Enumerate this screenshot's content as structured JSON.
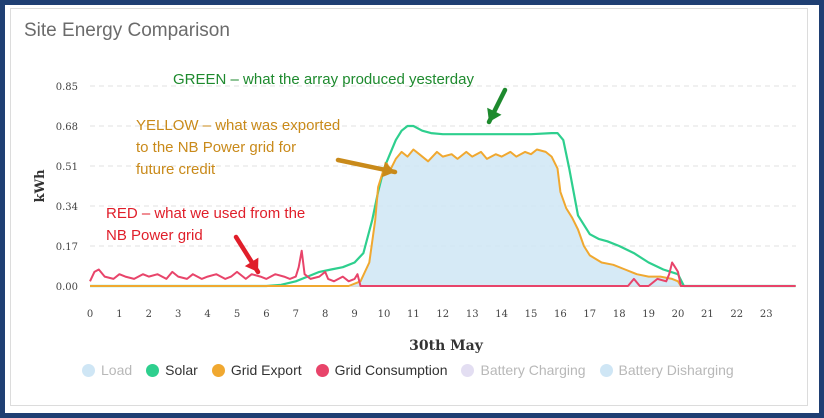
{
  "title": "Site Energy Comparison",
  "chart_data": {
    "type": "area",
    "xlabel": "30th May",
    "ylabel": "kWh",
    "xlim": [
      0,
      24
    ],
    "ylim": [
      0,
      0.85
    ],
    "x_ticks": [
      "0",
      "1",
      "2",
      "3",
      "4",
      "5",
      "6",
      "7",
      "8",
      "9",
      "10",
      "11",
      "12",
      "13",
      "14",
      "15",
      "16",
      "17",
      "18",
      "19",
      "20",
      "21",
      "22",
      "23"
    ],
    "y_ticks": [
      "0.00",
      "0.17",
      "0.34",
      "0.51",
      "0.68",
      "0.85"
    ],
    "grid": "horizontal dashed",
    "legend": [
      {
        "name": "Load",
        "color": "#cfe6f5",
        "active": false
      },
      {
        "name": "Solar",
        "color": "#2ecf8e",
        "active": true
      },
      {
        "name": "Grid Export",
        "color": "#f0a830",
        "active": true
      },
      {
        "name": "Grid Consumption",
        "color": "#e8446a",
        "active": true
      },
      {
        "name": "Battery Charging",
        "color": "#e3def2",
        "active": false
      },
      {
        "name": "Battery Disharging",
        "color": "#cfe6f5",
        "active": false
      }
    ],
    "series": [
      {
        "name": "Solar",
        "color": "#2ecf8e",
        "x": [
          0,
          6.0,
          6.5,
          7.0,
          7.4,
          7.8,
          8.2,
          8.6,
          9.0,
          9.3,
          9.6,
          9.8,
          10.0,
          10.2,
          10.4,
          10.6,
          10.8,
          11.0,
          11.3,
          11.6,
          12.0,
          13.0,
          14.0,
          15.0,
          15.7,
          15.9,
          16.1,
          16.3,
          16.6,
          17.0,
          17.3,
          17.6,
          18.0,
          18.5,
          19.0,
          19.5,
          20.0,
          20.2,
          24
        ],
        "y": [
          0,
          0,
          0.005,
          0.02,
          0.04,
          0.06,
          0.07,
          0.08,
          0.1,
          0.14,
          0.28,
          0.4,
          0.5,
          0.56,
          0.62,
          0.66,
          0.68,
          0.68,
          0.66,
          0.65,
          0.645,
          0.645,
          0.645,
          0.645,
          0.65,
          0.65,
          0.62,
          0.5,
          0.3,
          0.22,
          0.2,
          0.19,
          0.17,
          0.14,
          0.1,
          0.07,
          0.05,
          0,
          0
        ]
      },
      {
        "name": "Grid Export",
        "color": "#f0a830",
        "x": [
          0,
          8.8,
          9.2,
          9.5,
          9.7,
          9.8,
          10.0,
          10.1,
          10.2,
          10.4,
          10.6,
          10.8,
          11.0,
          11.2,
          11.5,
          11.8,
          12.0,
          12.3,
          12.5,
          12.8,
          13.0,
          13.3,
          13.5,
          13.8,
          14.0,
          14.3,
          14.5,
          14.8,
          15.0,
          15.2,
          15.5,
          15.7,
          15.9,
          16.0,
          16.2,
          16.4,
          16.6,
          16.8,
          17.0,
          17.4,
          17.8,
          18.2,
          18.6,
          19.0,
          19.4,
          19.8,
          20.0,
          20.1,
          24
        ],
        "y": [
          0,
          0,
          0.02,
          0.1,
          0.28,
          0.42,
          0.5,
          0.52,
          0.49,
          0.54,
          0.57,
          0.55,
          0.58,
          0.56,
          0.53,
          0.57,
          0.55,
          0.56,
          0.54,
          0.57,
          0.55,
          0.57,
          0.54,
          0.56,
          0.55,
          0.57,
          0.55,
          0.57,
          0.56,
          0.58,
          0.57,
          0.55,
          0.5,
          0.4,
          0.33,
          0.29,
          0.24,
          0.17,
          0.13,
          0.1,
          0.09,
          0.07,
          0.05,
          0.04,
          0.04,
          0.03,
          0.02,
          0,
          0
        ]
      },
      {
        "name": "Grid Consumption",
        "color": "#e8446a",
        "x": [
          0,
          0.15,
          0.3,
          0.5,
          0.8,
          1.0,
          1.2,
          1.5,
          1.8,
          2.0,
          2.3,
          2.6,
          2.8,
          3.0,
          3.3,
          3.5,
          3.8,
          4.0,
          4.3,
          4.6,
          4.8,
          5.0,
          5.3,
          5.5,
          5.8,
          6.0,
          6.3,
          6.6,
          6.8,
          7.0,
          7.1,
          7.2,
          7.3,
          7.5,
          7.8,
          8.0,
          8.1,
          8.3,
          8.6,
          8.8,
          9.0,
          9.1,
          9.2,
          9.5,
          18.3,
          18.5,
          18.7,
          19.0,
          19.3,
          19.6,
          19.7,
          19.8,
          19.9,
          20.0,
          20.1,
          24
        ],
        "y": [
          0.02,
          0.06,
          0.07,
          0.04,
          0.03,
          0.05,
          0.04,
          0.03,
          0.05,
          0.04,
          0.05,
          0.03,
          0.06,
          0.04,
          0.03,
          0.05,
          0.03,
          0.04,
          0.05,
          0.03,
          0.04,
          0.06,
          0.03,
          0.05,
          0.04,
          0.03,
          0.05,
          0.04,
          0.03,
          0.04,
          0.08,
          0.15,
          0.05,
          0.03,
          0.04,
          0.06,
          0.03,
          0.02,
          0.04,
          0.02,
          0.03,
          0.05,
          0.0,
          0,
          0,
          0.03,
          0.0,
          0,
          0.03,
          0.02,
          0.05,
          0.1,
          0.08,
          0.06,
          0,
          0
        ]
      }
    ],
    "annotations": [
      {
        "id": "green",
        "lines": [
          "GREEN – what the array produced yesterday"
        ],
        "color": "#1e8a2e"
      },
      {
        "id": "yellow",
        "lines": [
          "YELLOW – what was exported",
          "to the NB Power grid for",
          "future credit"
        ],
        "color": "#c98a1a"
      },
      {
        "id": "red",
        "lines": [
          "RED – what we used from the",
          "NB Power grid"
        ],
        "color": "#e01e2a"
      }
    ]
  }
}
